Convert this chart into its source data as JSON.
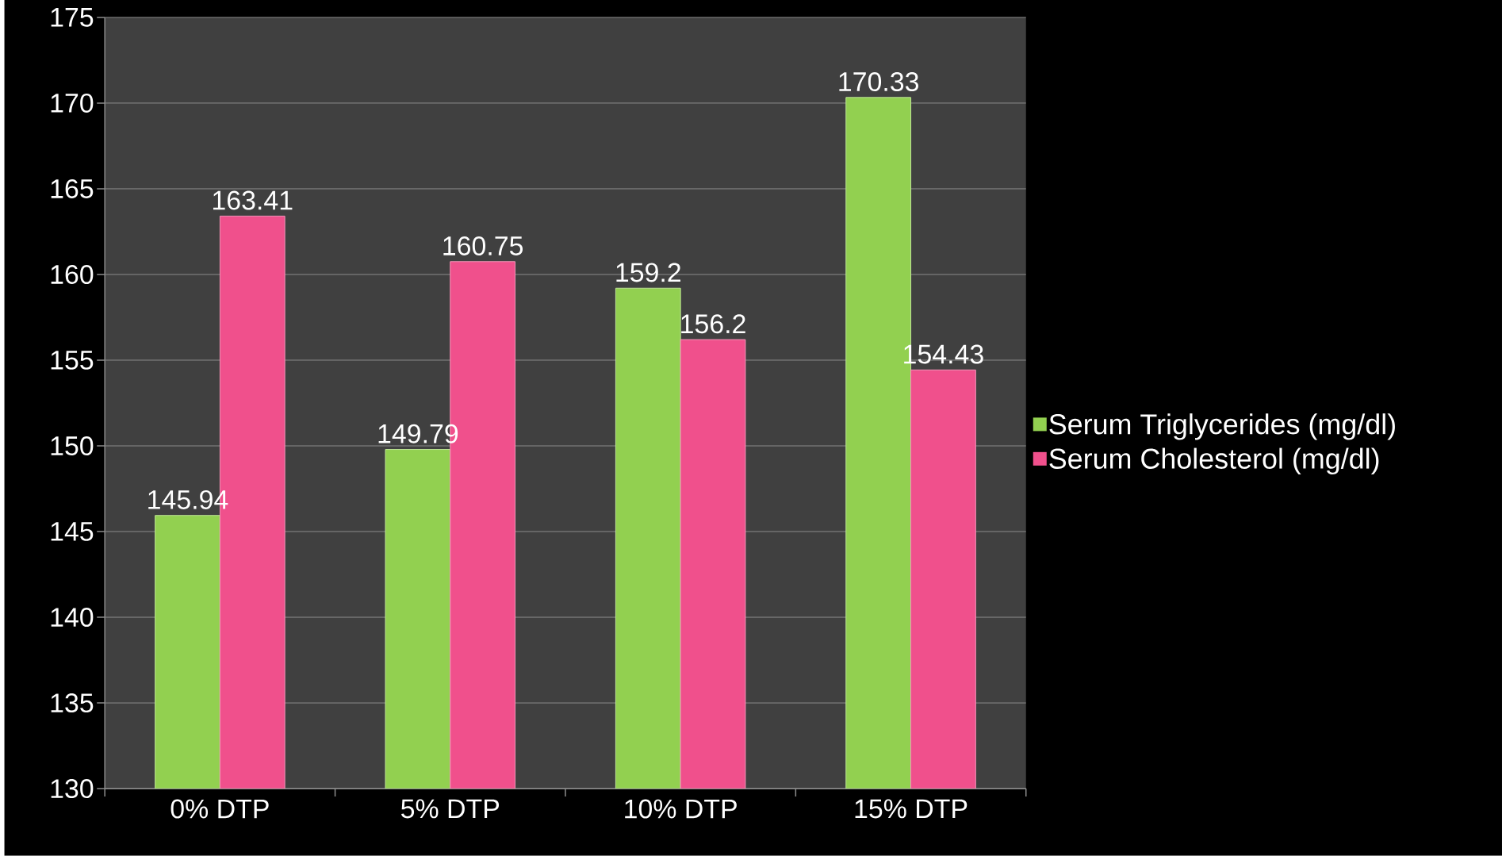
{
  "chart_data": {
    "type": "bar",
    "categories": [
      "0% DTP",
      "5% DTP",
      "10% DTP",
      "15% DTP"
    ],
    "series": [
      {
        "name": "Serum Triglycerides (mg/dl)",
        "color": "#92d050",
        "values": [
          145.94,
          149.79,
          159.2,
          170.33
        ]
      },
      {
        "name": "Serum Cholesterol (mg/dl)",
        "color": "#f0508c",
        "values": [
          163.41,
          160.75,
          156.2,
          154.43
        ]
      }
    ],
    "ylim": [
      130,
      175
    ],
    "yticks": [
      130,
      135,
      140,
      145,
      150,
      155,
      160,
      165,
      170,
      175
    ],
    "grid": "y",
    "legend": "right",
    "data_labels": true
  }
}
